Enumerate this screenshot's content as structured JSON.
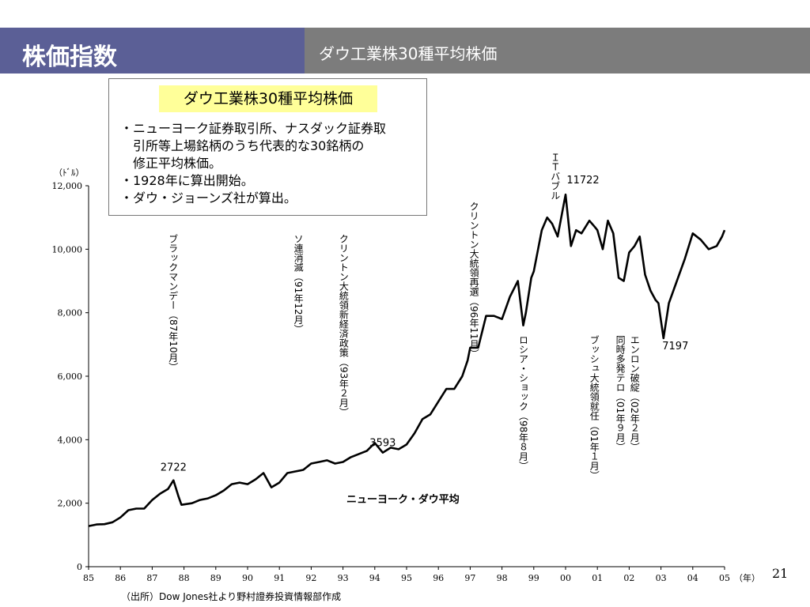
{
  "header": {
    "title": "株価指数",
    "subtitle": "ダウ工業株30種平均株価"
  },
  "info_box": {
    "heading": "ダウ工業株30種平均株価",
    "bullets": [
      "・ニューヨーク証券取引所、ナスダック証券取",
      "　引所等上場銘柄のうち代表的な30銘柄の",
      "　修正平均株価。",
      "・1928年に算出開始。",
      "・ダウ・ジョーンズ社が算出。"
    ]
  },
  "footer": {
    "source": "（出所）Dow Jones社より野村證券投資情報部作成",
    "page_number": "21"
  },
  "chart_data": {
    "type": "line",
    "y_unit_label": "（ﾄﾞﾙ）",
    "x_unit_label": "（年）",
    "ylim": [
      0,
      12000
    ],
    "yticks": [
      0,
      2000,
      4000,
      6000,
      8000,
      10000,
      12000
    ],
    "ytick_labels": [
      "0",
      "2,000",
      "4,000",
      "6,000",
      "8,000",
      "10,000",
      "12,000"
    ],
    "xlim": [
      1985,
      2005
    ],
    "xtick_labels": [
      "85",
      "86",
      "87",
      "88",
      "89",
      "90",
      "91",
      "92",
      "93",
      "94",
      "95",
      "96",
      "97",
      "98",
      "99",
      "00",
      "01",
      "02",
      "03",
      "04",
      "05"
    ],
    "grid": false,
    "series": [
      {
        "name": "ニューヨーク・ダウ平均",
        "points": [
          [
            1985.0,
            1280
          ],
          [
            1985.25,
            1330
          ],
          [
            1985.5,
            1340
          ],
          [
            1985.75,
            1400
          ],
          [
            1986.0,
            1550
          ],
          [
            1986.25,
            1780
          ],
          [
            1986.5,
            1830
          ],
          [
            1986.75,
            1830
          ],
          [
            1987.0,
            2100
          ],
          [
            1987.25,
            2300
          ],
          [
            1987.5,
            2450
          ],
          [
            1987.67,
            2722
          ],
          [
            1987.83,
            2200
          ],
          [
            1987.92,
            1950
          ],
          [
            1988.25,
            2000
          ],
          [
            1988.5,
            2100
          ],
          [
            1988.75,
            2150
          ],
          [
            1989.0,
            2250
          ],
          [
            1989.25,
            2400
          ],
          [
            1989.5,
            2600
          ],
          [
            1989.75,
            2650
          ],
          [
            1990.0,
            2600
          ],
          [
            1990.25,
            2750
          ],
          [
            1990.5,
            2950
          ],
          [
            1990.75,
            2500
          ],
          [
            1991.0,
            2650
          ],
          [
            1991.25,
            2950
          ],
          [
            1991.5,
            3000
          ],
          [
            1991.75,
            3050
          ],
          [
            1992.0,
            3250
          ],
          [
            1992.25,
            3300
          ],
          [
            1992.5,
            3350
          ],
          [
            1992.75,
            3250
          ],
          [
            1993.0,
            3300
          ],
          [
            1993.25,
            3450
          ],
          [
            1993.5,
            3550
          ],
          [
            1993.75,
            3650
          ],
          [
            1994.0,
            3900
          ],
          [
            1994.25,
            3593
          ],
          [
            1994.5,
            3750
          ],
          [
            1994.75,
            3700
          ],
          [
            1995.0,
            3850
          ],
          [
            1995.25,
            4200
          ],
          [
            1995.5,
            4650
          ],
          [
            1995.75,
            4800
          ],
          [
            1996.0,
            5200
          ],
          [
            1996.25,
            5600
          ],
          [
            1996.5,
            5600
          ],
          [
            1996.75,
            6000
          ],
          [
            1996.92,
            6500
          ],
          [
            1997.0,
            6900
          ],
          [
            1997.25,
            6900
          ],
          [
            1997.5,
            7900
          ],
          [
            1997.75,
            7900
          ],
          [
            1998.0,
            7800
          ],
          [
            1998.25,
            8500
          ],
          [
            1998.5,
            9000
          ],
          [
            1998.67,
            7600
          ],
          [
            1998.75,
            8000
          ],
          [
            1998.92,
            9100
          ],
          [
            1999.0,
            9300
          ],
          [
            1999.25,
            10600
          ],
          [
            1999.42,
            11000
          ],
          [
            1999.58,
            10800
          ],
          [
            1999.75,
            10400
          ],
          [
            1999.92,
            11300
          ],
          [
            2000.0,
            11722
          ],
          [
            2000.17,
            10100
          ],
          [
            2000.33,
            10600
          ],
          [
            2000.5,
            10500
          ],
          [
            2000.75,
            10900
          ],
          [
            2000.92,
            10700
          ],
          [
            2001.0,
            10600
          ],
          [
            2001.17,
            10000
          ],
          [
            2001.33,
            10900
          ],
          [
            2001.5,
            10500
          ],
          [
            2001.67,
            9100
          ],
          [
            2001.83,
            9000
          ],
          [
            2002.0,
            9900
          ],
          [
            2002.17,
            10100
          ],
          [
            2002.33,
            10400
          ],
          [
            2002.5,
            9200
          ],
          [
            2002.67,
            8700
          ],
          [
            2002.83,
            8400
          ],
          [
            2002.92,
            8300
          ],
          [
            2003.08,
            7197
          ],
          [
            2003.25,
            8300
          ],
          [
            2003.5,
            9000
          ],
          [
            2003.75,
            9700
          ],
          [
            2004.0,
            10500
          ],
          [
            2004.25,
            10300
          ],
          [
            2004.5,
            10000
          ],
          [
            2004.75,
            10100
          ],
          [
            2004.92,
            10400
          ],
          [
            2005.0,
            10600
          ]
        ]
      }
    ],
    "data_labels": [
      {
        "text": "2722",
        "x": 1987.67,
        "y": 2722
      },
      {
        "text": "3593",
        "x": 1994.25,
        "y": 3593
      },
      {
        "text": "11722",
        "x": 2000.0,
        "y": 11722
      },
      {
        "text": "7197",
        "x": 2003.08,
        "y": 7197
      }
    ],
    "series_label": "ニューヨーク・ダウ平均",
    "event_annotations": [
      {
        "text": "ブラックマンデー（87年10月）",
        "x": 1987.83
      },
      {
        "text": "ソ連消滅（91年12月）",
        "x": 1991.92
      },
      {
        "text": "クリントン大統領新経済政策（93年２月）",
        "x": 1993.17
      },
      {
        "text": "クリントン大統領再選（96年11月）",
        "x": 1996.92
      },
      {
        "text": "ＩＴバブル",
        "x": 1999.92
      },
      {
        "text": "ロシア・ショック（98年８月）",
        "x": 1998.67
      },
      {
        "text": "ブッシュ大統領就任（01年１月）",
        "x": 2001.0
      },
      {
        "text": "同時多発テロ（01年９月）",
        "x": 2001.67
      },
      {
        "text": "エンロン破綻（02年２月）",
        "x": 2002.17
      }
    ]
  }
}
